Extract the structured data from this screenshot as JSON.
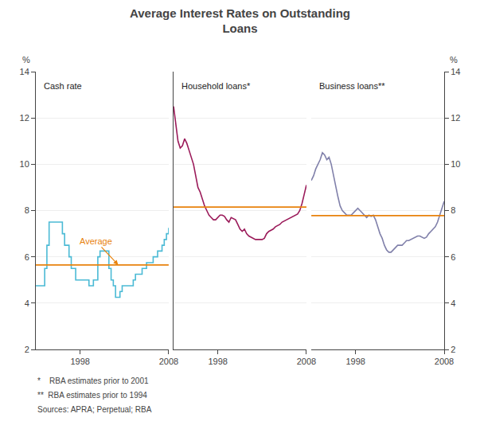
{
  "chart_data": [
    {
      "type": "line",
      "title": "Average Interest Rates on Outstanding\nLoans",
      "footnotes": [
        "*    RBA estimates prior to 2001",
        "**  RBA estimates prior to 1994",
        "Sources: APRA; Perpetual; RBA"
      ],
      "annotations": [
        {
          "text": "Average",
          "x": 2002.3,
          "y": 5.65
        }
      ],
      "ylabel": "%",
      "x": [
        1993.0,
        1993.25,
        1993.5,
        1993.75,
        1994.0,
        1994.25,
        1994.5,
        1994.75,
        1995.0,
        1995.25,
        1995.5,
        1995.75,
        1996.0,
        1996.25,
        1996.5,
        1996.75,
        1997.0,
        1997.25,
        1997.5,
        1997.75,
        1998.0,
        1998.25,
        1998.5,
        1998.75,
        1999.0,
        1999.25,
        1999.5,
        1999.75,
        2000.0,
        2000.25,
        2000.5,
        2000.75,
        2001.0,
        2001.25,
        2001.5,
        2001.75,
        2002.0,
        2002.25,
        2002.5,
        2002.75,
        2003.0,
        2003.25,
        2003.5,
        2003.75,
        2004.0,
        2004.25,
        2004.5,
        2004.75,
        2005.0,
        2005.25,
        2005.5,
        2005.75,
        2006.0,
        2006.25,
        2006.5,
        2006.75,
        2007.0,
        2007.25,
        2007.5,
        2007.75,
        2008.0
      ],
      "series": [
        {
          "name": "Cash rate",
          "color": "#4BBAD5",
          "line_style": "step",
          "values": [
            4.75,
            4.75,
            4.75,
            4.75,
            5.5,
            6.5,
            7.5,
            7.5,
            7.5,
            7.5,
            7.5,
            7.5,
            7.0,
            6.5,
            6.5,
            6.0,
            5.5,
            5.5,
            5.0,
            5.0,
            5.0,
            5.0,
            5.0,
            5.0,
            4.75,
            4.75,
            5.0,
            5.0,
            6.0,
            6.25,
            6.25,
            6.25,
            6.25,
            5.5,
            5.0,
            4.75,
            4.25,
            4.25,
            4.5,
            4.75,
            4.75,
            4.75,
            4.75,
            4.75,
            5.0,
            5.25,
            5.25,
            5.25,
            5.5,
            5.5,
            5.75,
            5.75,
            5.75,
            6.0,
            6.0,
            6.25,
            6.25,
            6.5,
            6.75,
            7.0,
            7.25
          ]
        }
      ],
      "average": {
        "value": 5.65,
        "color": "#E8820C"
      },
      "xlim": [
        1993,
        2008
      ],
      "xticks": [
        1998,
        2008
      ],
      "ylim": [
        2,
        14
      ],
      "yticks": [
        2,
        4,
        6,
        8,
        10,
        12,
        14
      ],
      "grid": true
    },
    {
      "type": "line",
      "x": [
        1993.0,
        1993.25,
        1993.5,
        1993.75,
        1994.0,
        1994.25,
        1994.5,
        1994.75,
        1995.0,
        1995.25,
        1995.5,
        1995.75,
        1996.0,
        1996.25,
        1996.5,
        1996.75,
        1997.0,
        1997.25,
        1997.5,
        1997.75,
        1998.0,
        1998.25,
        1998.5,
        1998.75,
        1999.0,
        1999.25,
        1999.5,
        1999.75,
        2000.0,
        2000.25,
        2000.5,
        2000.75,
        2001.0,
        2001.25,
        2001.5,
        2001.75,
        2002.0,
        2002.25,
        2002.5,
        2002.75,
        2003.0,
        2003.25,
        2003.5,
        2003.75,
        2004.0,
        2004.25,
        2004.5,
        2004.75,
        2005.0,
        2005.25,
        2005.5,
        2005.75,
        2006.0,
        2006.25,
        2006.5,
        2006.75,
        2007.0,
        2007.25,
        2007.5,
        2007.75,
        2008.0
      ],
      "series": [
        {
          "name": "Household loans*",
          "color": "#9B1B5A",
          "values": [
            12.5,
            11.8,
            11.0,
            10.7,
            10.8,
            11.1,
            10.9,
            10.6,
            10.3,
            10.0,
            9.5,
            9.0,
            8.8,
            8.5,
            8.2,
            8.0,
            7.8,
            7.7,
            7.6,
            7.6,
            7.7,
            7.8,
            7.8,
            7.75,
            7.6,
            7.5,
            7.7,
            7.65,
            7.6,
            7.4,
            7.2,
            7.1,
            7.2,
            7.0,
            6.9,
            6.85,
            6.8,
            6.75,
            6.75,
            6.75,
            6.75,
            6.8,
            7.0,
            7.1,
            7.15,
            7.2,
            7.3,
            7.35,
            7.4,
            7.5,
            7.55,
            7.6,
            7.65,
            7.7,
            7.75,
            7.8,
            7.85,
            8.0,
            8.3,
            8.7,
            9.1
          ]
        }
      ],
      "average": {
        "value": 8.15,
        "color": "#E8820C"
      },
      "xlim": [
        1993,
        2008
      ],
      "xticks": [
        1998,
        2008
      ],
      "ylim": [
        2,
        14
      ],
      "yticks": [
        2,
        4,
        6,
        8,
        10,
        12,
        14
      ],
      "grid": true,
      "tick_labels": "x"
    },
    {
      "type": "line",
      "ylabel": "%",
      "x": [
        1993.0,
        1993.25,
        1993.5,
        1993.75,
        1994.0,
        1994.25,
        1994.5,
        1994.75,
        1995.0,
        1995.25,
        1995.5,
        1995.75,
        1996.0,
        1996.25,
        1996.5,
        1996.75,
        1997.0,
        1997.25,
        1997.5,
        1997.75,
        1998.0,
        1998.25,
        1998.5,
        1998.75,
        1999.0,
        1999.25,
        1999.5,
        1999.75,
        2000.0,
        2000.25,
        2000.5,
        2000.75,
        2001.0,
        2001.25,
        2001.5,
        2001.75,
        2002.0,
        2002.25,
        2002.5,
        2002.75,
        2003.0,
        2003.25,
        2003.5,
        2003.75,
        2004.0,
        2004.25,
        2004.5,
        2004.75,
        2005.0,
        2005.25,
        2005.5,
        2005.75,
        2006.0,
        2006.25,
        2006.5,
        2006.75,
        2007.0,
        2007.25,
        2007.5,
        2007.75,
        2008.0
      ],
      "series": [
        {
          "name": "Business loans**",
          "color": "#8080AA",
          "values": [
            9.3,
            9.5,
            9.8,
            10.0,
            10.2,
            10.5,
            10.4,
            10.2,
            10.3,
            10.0,
            9.5,
            9.0,
            8.6,
            8.2,
            8.0,
            7.9,
            7.8,
            7.8,
            7.8,
            7.9,
            8.0,
            8.1,
            8.0,
            7.9,
            7.8,
            7.7,
            7.8,
            7.75,
            7.8,
            7.6,
            7.3,
            7.0,
            6.8,
            6.5,
            6.3,
            6.2,
            6.2,
            6.3,
            6.4,
            6.5,
            6.5,
            6.5,
            6.6,
            6.7,
            6.7,
            6.75,
            6.8,
            6.85,
            6.9,
            6.9,
            6.85,
            6.8,
            6.85,
            7.0,
            7.1,
            7.2,
            7.3,
            7.5,
            7.8,
            8.1,
            8.4
          ]
        }
      ],
      "average": {
        "value": 7.78,
        "color": "#E8820C"
      },
      "xlim": [
        1993,
        2008
      ],
      "xticks": [
        1998,
        2008
      ],
      "ylim": [
        2,
        14
      ],
      "yticks": [
        2,
        4,
        6,
        8,
        10,
        12,
        14
      ],
      "grid": true
    }
  ]
}
